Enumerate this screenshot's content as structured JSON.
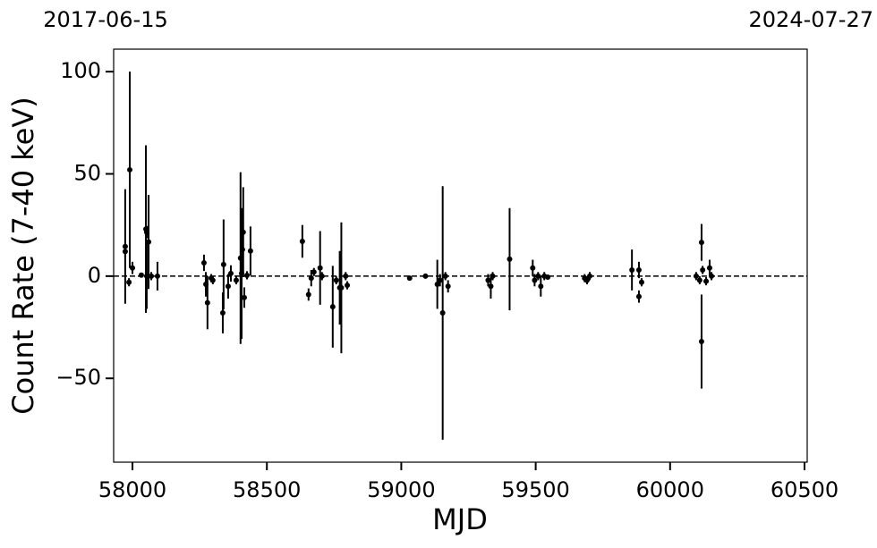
{
  "chart_data": {
    "type": "scatter",
    "annotations": [
      "2017-06-15",
      "2024-07-27"
    ],
    "xlabel": "MJD",
    "ylabel": "Count Rate (7-40 keV)",
    "xlim": [
      57930,
      60510
    ],
    "ylim": [
      -91,
      111
    ],
    "xticks": [
      58000,
      58500,
      59000,
      59500,
      60000,
      60500
    ],
    "yticks": [
      {
        "value": -50,
        "label": "−50"
      },
      0,
      50,
      100
    ],
    "hline": 0,
    "color": "#000000",
    "x": [
      57973,
      57973,
      57987,
      57990,
      58000,
      58033,
      58050,
      58053,
      58053,
      58060,
      58070,
      58093,
      58266,
      58273,
      58279,
      58293,
      58299,
      58336,
      58339,
      58356,
      58366,
      58386,
      58402,
      58406,
      58409,
      58412,
      58416,
      58426,
      58439,
      58632,
      58655,
      58665,
      58675,
      58698,
      58705,
      58745,
      58758,
      58771,
      58777,
      58793,
      58799,
      59031,
      59090,
      59134,
      59144,
      59154,
      59164,
      59174,
      59323,
      59333,
      59340,
      59403,
      59489,
      59496,
      59509,
      59519,
      59532,
      59545,
      59682,
      59691,
      59701,
      59858,
      59884,
      59884,
      59894,
      60097,
      60110,
      60117,
      60117,
      60121,
      60134,
      60147,
      60154
    ],
    "values": [
      14.5,
      12,
      -3,
      52,
      4,
      0.5,
      23,
      21.5,
      0,
      16.7,
      0,
      0,
      6.5,
      -4,
      -13,
      -1,
      -2,
      -18,
      5.7,
      -5,
      1.3,
      -2,
      8.8,
      1.3,
      13,
      21.5,
      -10.5,
      0.4,
      12.3,
      17,
      -9,
      -1,
      2,
      4,
      0,
      -15,
      -2,
      -5.7,
      -5.7,
      0,
      -4.5,
      -1,
      0,
      -4,
      -2,
      -18,
      0,
      -5,
      -2,
      -5,
      0,
      8.3,
      4,
      -2,
      0,
      -5,
      0,
      -0.5,
      -1,
      -2,
      0,
      3,
      3,
      -10,
      -3,
      0,
      -2,
      16.5,
      -32,
      3,
      -2.5,
      4,
      0
    ],
    "errors": [
      28,
      3,
      2,
      48,
      3,
      1,
      41,
      3,
      16,
      23,
      2,
      7,
      4,
      6,
      13,
      2,
      2,
      10,
      22,
      6,
      4,
      2,
      42,
      32,
      3,
      22,
      5,
      2,
      12,
      8,
      3,
      4,
      2,
      18,
      2,
      20,
      2,
      18,
      32,
      2,
      2,
      1,
      1,
      12,
      3,
      62,
      2,
      3,
      3,
      6,
      2,
      25,
      4,
      3,
      2,
      5,
      2,
      1,
      2,
      2,
      2,
      10,
      4,
      3,
      2,
      2,
      2,
      9,
      23,
      2,
      2,
      4,
      2
    ]
  }
}
